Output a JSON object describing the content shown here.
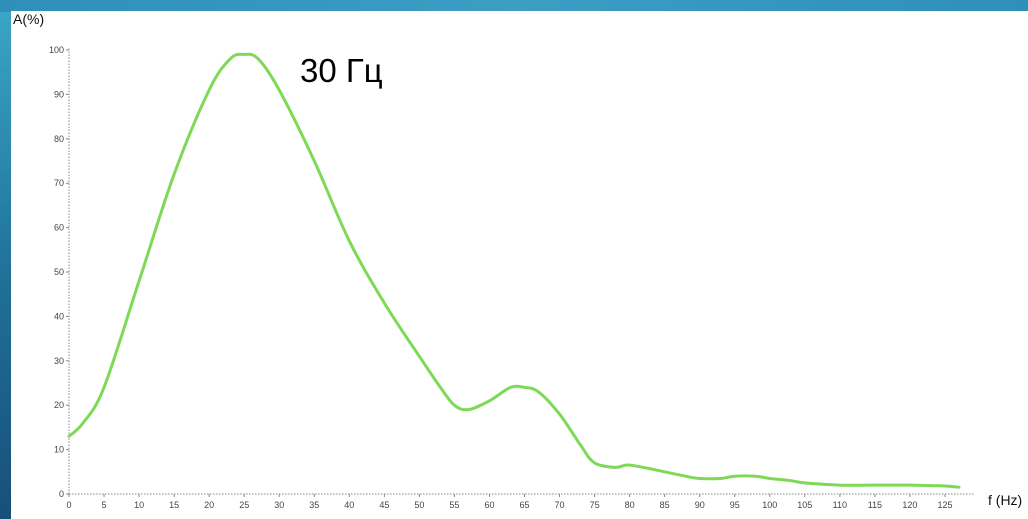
{
  "chart_data": {
    "type": "line",
    "ylabel": "A(%)",
    "xlabel": "f (Hz)",
    "annotation": "30 Гц",
    "xlim": [
      0,
      128
    ],
    "ylim": [
      0,
      100
    ],
    "xticks": [
      0,
      5,
      10,
      15,
      20,
      25,
      30,
      35,
      40,
      45,
      50,
      55,
      60,
      65,
      70,
      75,
      80,
      85,
      90,
      95,
      100,
      105,
      110,
      115,
      120,
      125
    ],
    "yticks": [
      0,
      10,
      20,
      30,
      40,
      50,
      60,
      70,
      80,
      90,
      100
    ],
    "grid": false,
    "series": [
      {
        "color": "#7ed957",
        "x": [
          0,
          2,
          5,
          10,
          15,
          20,
          23,
          25,
          27,
          30,
          35,
          40,
          45,
          50,
          53,
          55,
          57,
          60,
          63,
          65,
          67,
          70,
          73,
          75,
          78,
          80,
          85,
          88,
          90,
          93,
          95,
          98,
          100,
          103,
          105,
          110,
          115,
          120,
          125,
          127
        ],
        "y": [
          13,
          16,
          24,
          48,
          72,
          91,
          98,
          99,
          98,
          91,
          75,
          57,
          43,
          31,
          24,
          20,
          19,
          21,
          24,
          24,
          23,
          18,
          11,
          7,
          6,
          6.5,
          5,
          4,
          3.5,
          3.5,
          4,
          4,
          3.5,
          3,
          2.5,
          2,
          2,
          2,
          1.8,
          1.5
        ]
      }
    ]
  }
}
